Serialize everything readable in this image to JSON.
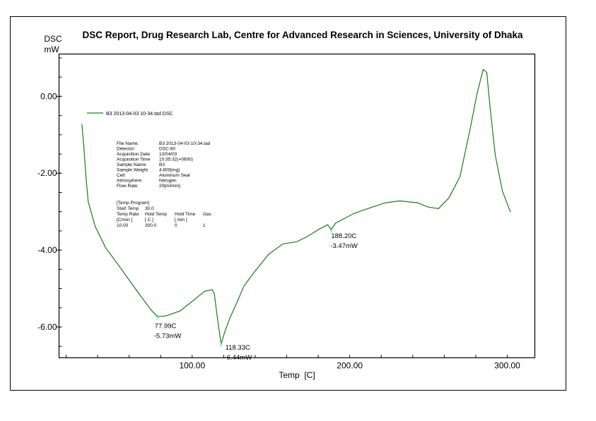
{
  "chart_data": {
    "type": "line",
    "title": "DSC Report, Drug Research Lab, Centre for Advanced Research in Sciences, University of Dhaka",
    "xlabel": "Temp  [C]",
    "ylabel": [
      "DSC",
      "mW"
    ],
    "xlim": [
      15.5,
      317.5
    ],
    "ylim": [
      -6.8,
      1.1
    ],
    "x_ticks": [
      100,
      200,
      300
    ],
    "x_tick_labels": [
      "100.00",
      "200.00",
      "300.00"
    ],
    "y_ticks": [
      0,
      -2,
      -4,
      -6
    ],
    "y_tick_labels": [
      "0.00",
      "-2.00",
      "-4.00",
      "-6.00"
    ],
    "x_minor_step": 20,
    "y_minor_step": 0.5,
    "grid": false,
    "line_color": "#1a7a1a",
    "marker_color": "#33cccc",
    "legend": {
      "placement": "top-left",
      "entry": "B3 2013-04-03 10-34.tad  DSC"
    },
    "series": [
      {
        "name": "B3 2013-04-03 10-34.tad  DSC",
        "x": [
          30,
          31,
          32.6,
          34,
          38.4,
          45,
          56.4,
          67.6,
          74.4,
          77.99,
          83.4,
          92.4,
          101,
          108,
          112.6,
          114,
          116,
          118.33,
          120.7,
          124,
          128,
          132.8,
          139.5,
          148.5,
          157.5,
          166.5,
          173,
          180,
          186,
          188.2,
          191,
          202.5,
          211.5,
          222.7,
          231.7,
          243,
          249.7,
          256.4,
          263,
          270,
          276.6,
          281,
          284.7,
          287,
          289,
          292.4,
          296.9,
          302
        ],
        "y": [
          -0.72,
          -1.17,
          -2.09,
          -2.73,
          -3.38,
          -3.93,
          -4.57,
          -5.21,
          -5.58,
          -5.73,
          -5.71,
          -5.58,
          -5.3,
          -5.07,
          -5.03,
          -5.12,
          -5.76,
          -6.44,
          -6.13,
          -5.76,
          -5.4,
          -4.94,
          -4.57,
          -4.11,
          -3.84,
          -3.78,
          -3.65,
          -3.47,
          -3.34,
          -3.47,
          -3.3,
          -3.05,
          -2.92,
          -2.77,
          -2.72,
          -2.77,
          -2.88,
          -2.92,
          -2.64,
          -2.09,
          -0.81,
          0.11,
          0.7,
          0.62,
          -0.26,
          -1.54,
          -2.46,
          -3.01
        ]
      }
    ],
    "annotations": [
      {
        "x": 77.99,
        "y": -5.73,
        "line1": "77.99C",
        "line2": "-5.73mW"
      },
      {
        "x": 118.33,
        "y": -6.44,
        "line1": "118.33C",
        "line2": "-6.44mW"
      },
      {
        "x": 188.2,
        "y": -3.47,
        "line1": "188.20C",
        "line2": "-3.47mW"
      }
    ],
    "info_block": [
      [
        "File Name:",
        "B3 2013-04-03 10-34.tad"
      ],
      [
        "Detector:",
        "DSC-60"
      ],
      [
        "Acquisition Date",
        "13/04/03"
      ],
      [
        "Acquisition Time",
        "10:35:32(+0600)"
      ],
      [
        "Sample Name:",
        "B3"
      ],
      [
        "Sample Weight:",
        "4.800[mg]"
      ],
      [
        "Cell:",
        "Aluminum Seal"
      ],
      [
        "Atmosphere:",
        "Nitrogen"
      ],
      [
        "Flow Rate:",
        "20[ml/min]"
      ]
    ],
    "temp_program": {
      "heading": "[Temp Program]",
      "start_label": "Start Temp",
      "start_value": "30.0",
      "headers": [
        "Temp Rate",
        "Hold Temp",
        "Hold Time",
        "Gas"
      ],
      "units": [
        "[C/min ]",
        "[  C  ]",
        "[  min  ]",
        ""
      ],
      "row": [
        "10.00",
        "300.0",
        "0",
        "1"
      ]
    }
  }
}
